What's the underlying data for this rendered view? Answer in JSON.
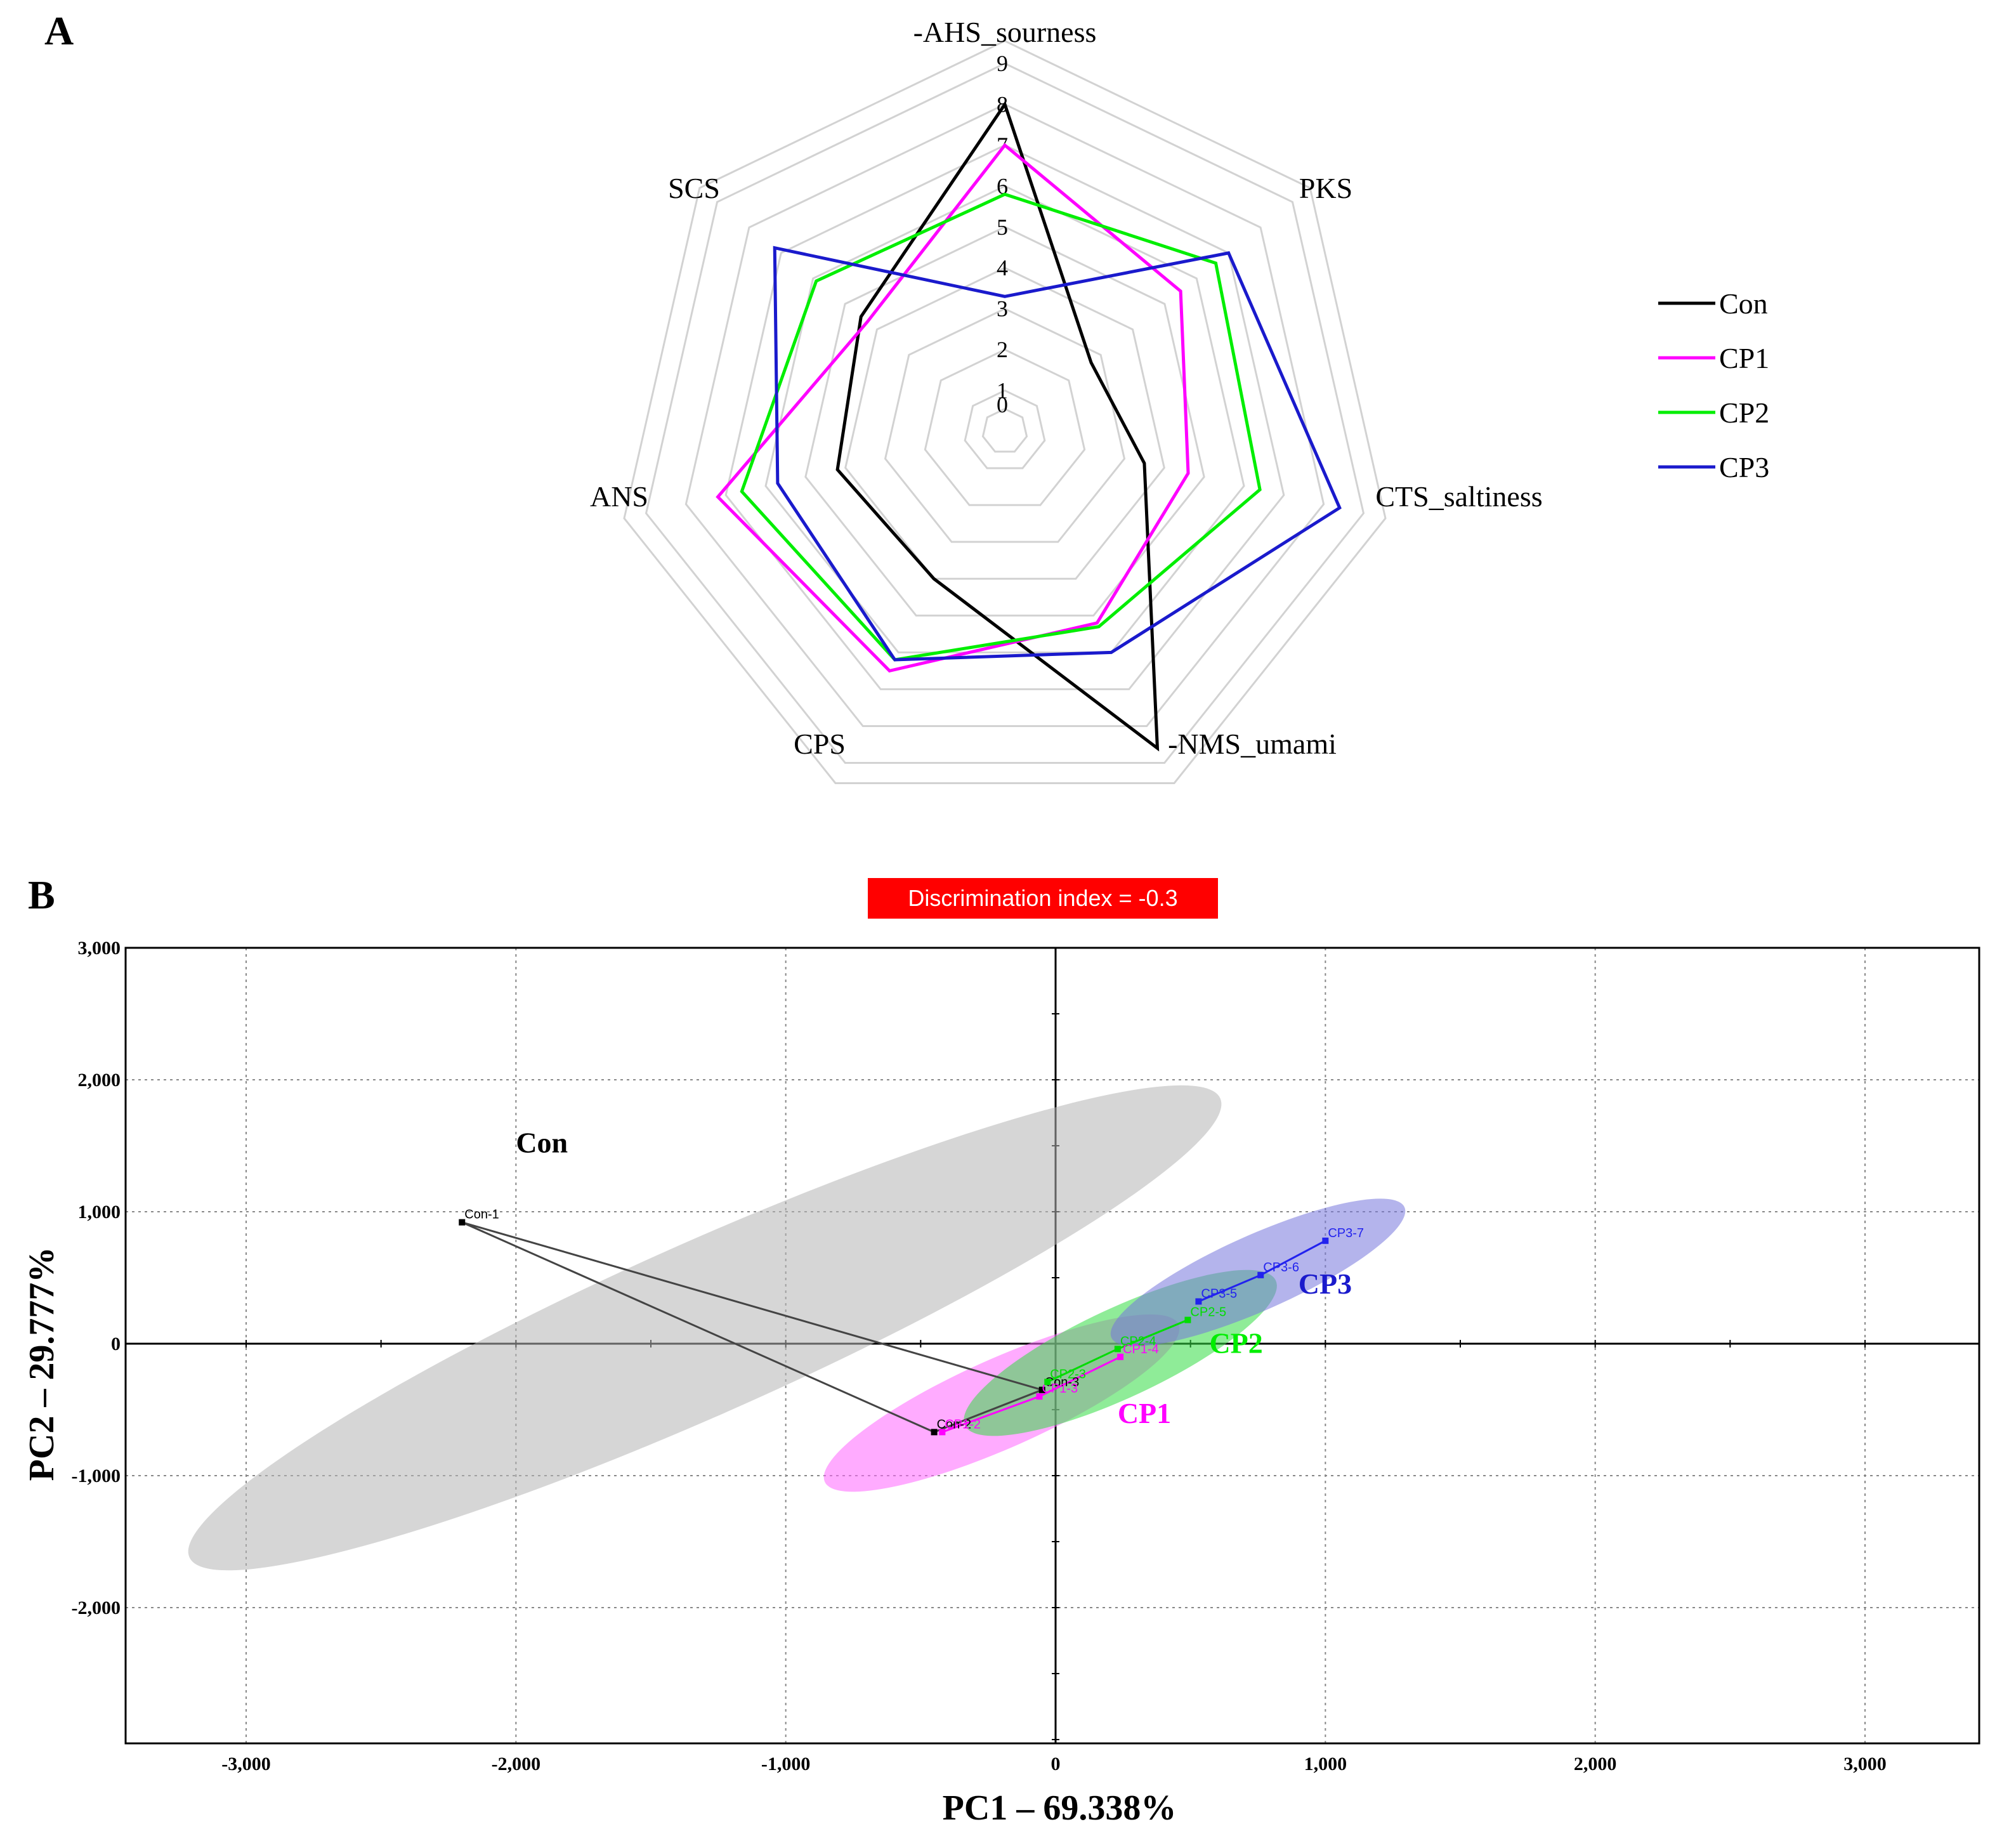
{
  "panel_a_label": "A",
  "panel_b_label": "B",
  "chart_data": [
    {
      "type": "radar",
      "axes": [
        "-AHS_sourness",
        "PKS",
        "CTS_saltiness",
        "-NMS_umami",
        "CPS",
        "ANS",
        "SCS"
      ],
      "scale": {
        "min": 0,
        "max": 9,
        "ticks": [
          "0",
          "1",
          "2",
          "3",
          "4",
          "5",
          "6",
          "7",
          "8",
          "9"
        ]
      },
      "series": [
        {
          "name": "Con",
          "color": "#000000",
          "values": [
            8.0,
            2.7,
            3.5,
            8.6,
            4.0,
            4.2,
            4.5
          ]
        },
        {
          "name": "CP1",
          "color": "#ff00ff",
          "values": [
            7.0,
            5.5,
            4.6,
            5.2,
            6.5,
            7.2,
            4.3
          ]
        },
        {
          "name": "CP2",
          "color": "#00ee00",
          "values": [
            5.8,
            6.6,
            6.4,
            5.3,
            6.2,
            6.6,
            5.9
          ]
        },
        {
          "name": "CP3",
          "color": "#1a1acc",
          "values": [
            3.3,
            7.0,
            8.4,
            6.0,
            6.2,
            5.7,
            7.2
          ]
        }
      ],
      "legend": {
        "position": "right",
        "entries": [
          "Con",
          "CP1",
          "CP2",
          "CP3"
        ]
      }
    },
    {
      "type": "scatter",
      "badge": "Discrimination index = -0.3",
      "badge_color": "#ff0000",
      "xlabel": "PC1 – 69.338%",
      "ylabel": "PC2 – 29.777%",
      "xlim": [
        -3000,
        3000
      ],
      "ylim": [
        -3000,
        3000
      ],
      "xticks": [
        "-3,000",
        "-2,000",
        "-1,000",
        "0",
        "1,000",
        "2,000",
        "3,000"
      ],
      "yticks": [
        "3,000",
        "2,000",
        "1,000",
        "0",
        "-1,000",
        "-2,000"
      ],
      "grid": true,
      "groups": [
        {
          "name": "Con",
          "color": "#000000",
          "fill": "#b4b4b4",
          "label_color": "#000000",
          "label_pos": [
            -2000,
            1450
          ],
          "ellipse": {
            "center": [
              -1300,
              120
            ],
            "rx": 1020,
            "ry": 250,
            "angle": -24
          },
          "points": [
            {
              "label": "Con-1",
              "x": -2200,
              "y": 920
            },
            {
              "label": "Con-2",
              "x": -450,
              "y": -670
            },
            {
              "label": "Con-3",
              "x": -50,
              "y": -350
            }
          ]
        },
        {
          "name": "CP1",
          "color": "#ff00ff",
          "fill": "#ff66ff",
          "label_color": "#ff00ff",
          "label_pos": [
            230,
            -600
          ],
          "ellipse": {
            "center": [
              -200,
              -450
            ],
            "rx": 350,
            "ry": 130,
            "angle": -24
          },
          "points": [
            {
              "label": "CP1-2",
              "x": -420,
              "y": -670
            },
            {
              "label": "CP1-3",
              "x": -60,
              "y": -400
            },
            {
              "label": "CP1-4",
              "x": 240,
              "y": -100
            }
          ]
        },
        {
          "name": "CP2",
          "color": "#00dd00",
          "fill": "#33dd44",
          "label_color": "#00ee00",
          "label_pos": [
            570,
            -70
          ],
          "ellipse": {
            "center": [
              240,
              -70
            ],
            "rx": 310,
            "ry": 130,
            "angle": -25
          },
          "points": [
            {
              "label": "CP2-3",
              "x": -30,
              "y": -290
            },
            {
              "label": "CP2-4",
              "x": 230,
              "y": -40
            },
            {
              "label": "CP2-5",
              "x": 490,
              "y": 180
            }
          ]
        },
        {
          "name": "CP3",
          "color": "#2222ee",
          "fill": "#7777dd",
          "label_color": "#1a1acc",
          "label_pos": [
            900,
            380
          ],
          "ellipse": {
            "center": [
              750,
              540
            ],
            "rx": 290,
            "ry": 110,
            "angle": -24
          },
          "points": [
            {
              "label": "CP3-5",
              "x": 530,
              "y": 320
            },
            {
              "label": "CP3-6",
              "x": 760,
              "y": 520
            },
            {
              "label": "CP3-7",
              "x": 1000,
              "y": 780
            }
          ]
        }
      ]
    }
  ]
}
